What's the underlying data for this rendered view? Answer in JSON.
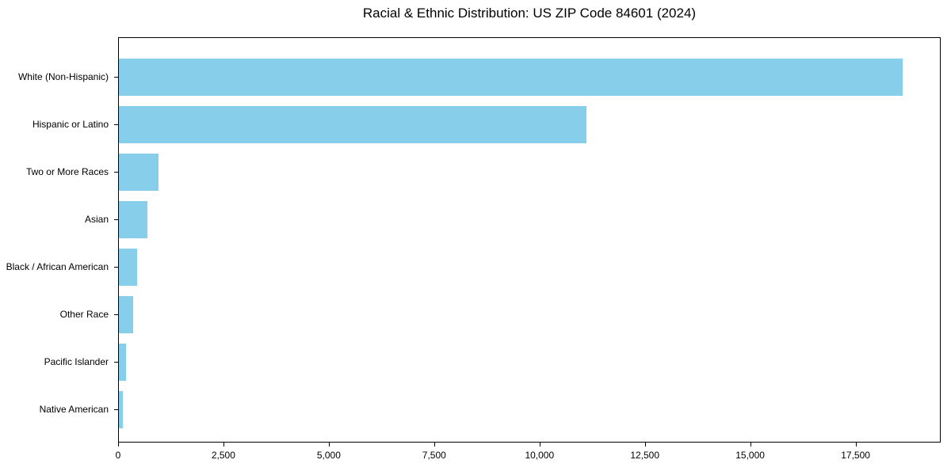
{
  "page": {
    "background": "#ffffff",
    "text_color": "#000000"
  },
  "chart_data": {
    "type": "bar",
    "orientation": "horizontal",
    "title": "Racial & Ethnic Distribution: US ZIP Code 84601 (2024)",
    "categories": [
      "White (Non-Hispanic)",
      "Hispanic or Latino",
      "Two or More Races",
      "Asian",
      "Black / African American",
      "Other Race",
      "Pacific Islander",
      "Native American"
    ],
    "values": [
      18590,
      11085,
      940,
      680,
      430,
      345,
      165,
      100
    ],
    "bar_color": "#87CEEB",
    "xlabel": "",
    "ylabel": "",
    "xlim": [
      0,
      19520
    ],
    "x_ticks": [
      0,
      2500,
      5000,
      7500,
      10000,
      12500,
      15000,
      17500
    ],
    "x_tick_labels": [
      "0",
      "2,500",
      "5,000",
      "7,500",
      "10,000",
      "12,500",
      "15,000",
      "17,500"
    ],
    "grid": false,
    "legend": null
  }
}
